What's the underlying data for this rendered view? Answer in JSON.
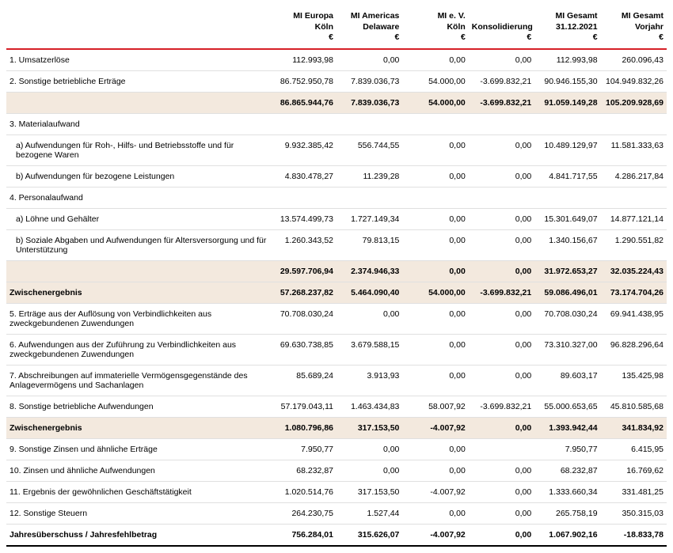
{
  "columns": [
    {
      "l1": "MI Europa",
      "l2": "Köln",
      "l3": "€"
    },
    {
      "l1": "MI Americas",
      "l2": "Delaware",
      "l3": "€"
    },
    {
      "l1": "MI e. V.",
      "l2": "Köln",
      "l3": "€"
    },
    {
      "l1": "",
      "l2": "Konsolidierung",
      "l3": "€"
    },
    {
      "l1": "MI Gesamt",
      "l2": "31.12.2021",
      "l3": "€"
    },
    {
      "l1": "MI Gesamt",
      "l2": "Vorjahr",
      "l3": "€"
    }
  ],
  "rows": [
    {
      "type": "body",
      "label": "1. Umsatzerlöse",
      "v": [
        "112.993,98",
        "0,00",
        "0,00",
        "0,00",
        "112.993,98",
        "260.096,43"
      ]
    },
    {
      "type": "body",
      "label": "2. Sonstige betriebliche Erträge",
      "v": [
        "86.752.950,78",
        "7.839.036,73",
        "54.000,00",
        "-3.699.832,21",
        "90.946.155,30",
        "104.949.832,26"
      ]
    },
    {
      "type": "subtotal",
      "label": "",
      "v": [
        "86.865.944,76",
        "7.839.036,73",
        "54.000,00",
        "-3.699.832,21",
        "91.059.149,28",
        "105.209.928,69"
      ]
    },
    {
      "type": "section",
      "label": "3. Materialaufwand",
      "v": [
        "",
        "",
        "",
        "",
        "",
        ""
      ]
    },
    {
      "type": "body",
      "label": "a) Aufwendungen für Roh-, Hilfs- und Betriebsstoffe und für bezogene Waren",
      "indent": true,
      "v": [
        "9.932.385,42",
        "556.744,55",
        "0,00",
        "0,00",
        "10.489.129,97",
        "11.581.333,63"
      ]
    },
    {
      "type": "body",
      "label": "b) Aufwendungen für bezogene Leistungen",
      "indent": true,
      "v": [
        "4.830.478,27",
        "11.239,28",
        "0,00",
        "0,00",
        "4.841.717,55",
        "4.286.217,84"
      ]
    },
    {
      "type": "section",
      "label": "4. Personalaufwand",
      "v": [
        "",
        "",
        "",
        "",
        "",
        ""
      ]
    },
    {
      "type": "body",
      "label": "a) Löhne und Gehälter",
      "indent": true,
      "v": [
        "13.574.499,73",
        "1.727.149,34",
        "0,00",
        "0,00",
        "15.301.649,07",
        "14.877.121,14"
      ]
    },
    {
      "type": "body",
      "label": "b) Soziale Abgaben und Aufwendungen für Altersversorgung und für Unterstützung",
      "indent": true,
      "v": [
        "1.260.343,52",
        "79.813,15",
        "0,00",
        "0,00",
        "1.340.156,67",
        "1.290.551,82"
      ]
    },
    {
      "type": "subtotal",
      "label": "",
      "v": [
        "29.597.706,94",
        "2.374.946,33",
        "0,00",
        "0,00",
        "31.972.653,27",
        "32.035.224,43"
      ]
    },
    {
      "type": "zwischen",
      "label": "Zwischenergebnis",
      "v": [
        "57.268.237,82",
        "5.464.090,40",
        "54.000,00",
        "-3.699.832,21",
        "59.086.496,01",
        "73.174.704,26"
      ]
    },
    {
      "type": "body",
      "label": "5. Erträge aus der Auflösung von Verbindlichkeiten aus zweckgebundenen Zuwendungen",
      "v": [
        "70.708.030,24",
        "0,00",
        "0,00",
        "0,00",
        "70.708.030,24",
        "69.941.438,95"
      ]
    },
    {
      "type": "body",
      "label": "6. Aufwendungen aus der Zuführung zu Verbindlichkeiten aus zweckgebundenen Zuwendungen",
      "v": [
        "69.630.738,85",
        "3.679.588,15",
        "0,00",
        "0,00",
        "73.310.327,00",
        "96.828.296,64"
      ]
    },
    {
      "type": "body",
      "label": "7. Abschreibungen auf immaterielle Vermögensgegenstände des Anlagevermögens und Sachanlagen",
      "v": [
        "85.689,24",
        "3.913,93",
        "0,00",
        "0,00",
        "89.603,17",
        "135.425,98"
      ]
    },
    {
      "type": "body",
      "label": "8. Sonstige betriebliche Aufwendungen",
      "v": [
        "57.179.043,11",
        "1.463.434,83",
        "58.007,92",
        "-3.699.832,21",
        "55.000.653,65",
        "45.810.585,68"
      ]
    },
    {
      "type": "zwischen",
      "label": "Zwischenergebnis",
      "v": [
        "1.080.796,86",
        "317.153,50",
        "-4.007,92",
        "0,00",
        "1.393.942,44",
        "341.834,92"
      ]
    },
    {
      "type": "body",
      "label": "9. Sonstige Zinsen und ähnliche Erträge",
      "v": [
        "7.950,77",
        "0,00",
        "0,00",
        "",
        "7.950,77",
        "6.415,95"
      ]
    },
    {
      "type": "body",
      "label": "10. Zinsen und ähnliche Aufwendungen",
      "v": [
        "68.232,87",
        "0,00",
        "0,00",
        "0,00",
        "68.232,87",
        "16.769,62"
      ]
    },
    {
      "type": "body",
      "label": "11. Ergebnis der gewöhnlichen Geschäftstätigkeit",
      "v": [
        "1.020.514,76",
        "317.153,50",
        "-4.007,92",
        "0,00",
        "1.333.660,34",
        "331.481,25"
      ]
    },
    {
      "type": "body",
      "label": "12. Sonstige Steuern",
      "v": [
        "264.230,75",
        "1.527,44",
        "0,00",
        "0,00",
        "265.758,19",
        "350.315,03"
      ]
    },
    {
      "type": "final",
      "label": "Jahresüberschuss / Jahresfehlbetrag",
      "v": [
        "756.284,01",
        "315.626,07",
        "-4.007,92",
        "0,00",
        "1.067.902,16",
        "-18.833,78"
      ]
    }
  ],
  "colors": {
    "accent": "#d62027",
    "highlight_bg": "#f3e9de",
    "border_light": "#e0e0e0",
    "border_dark": "#000000"
  }
}
